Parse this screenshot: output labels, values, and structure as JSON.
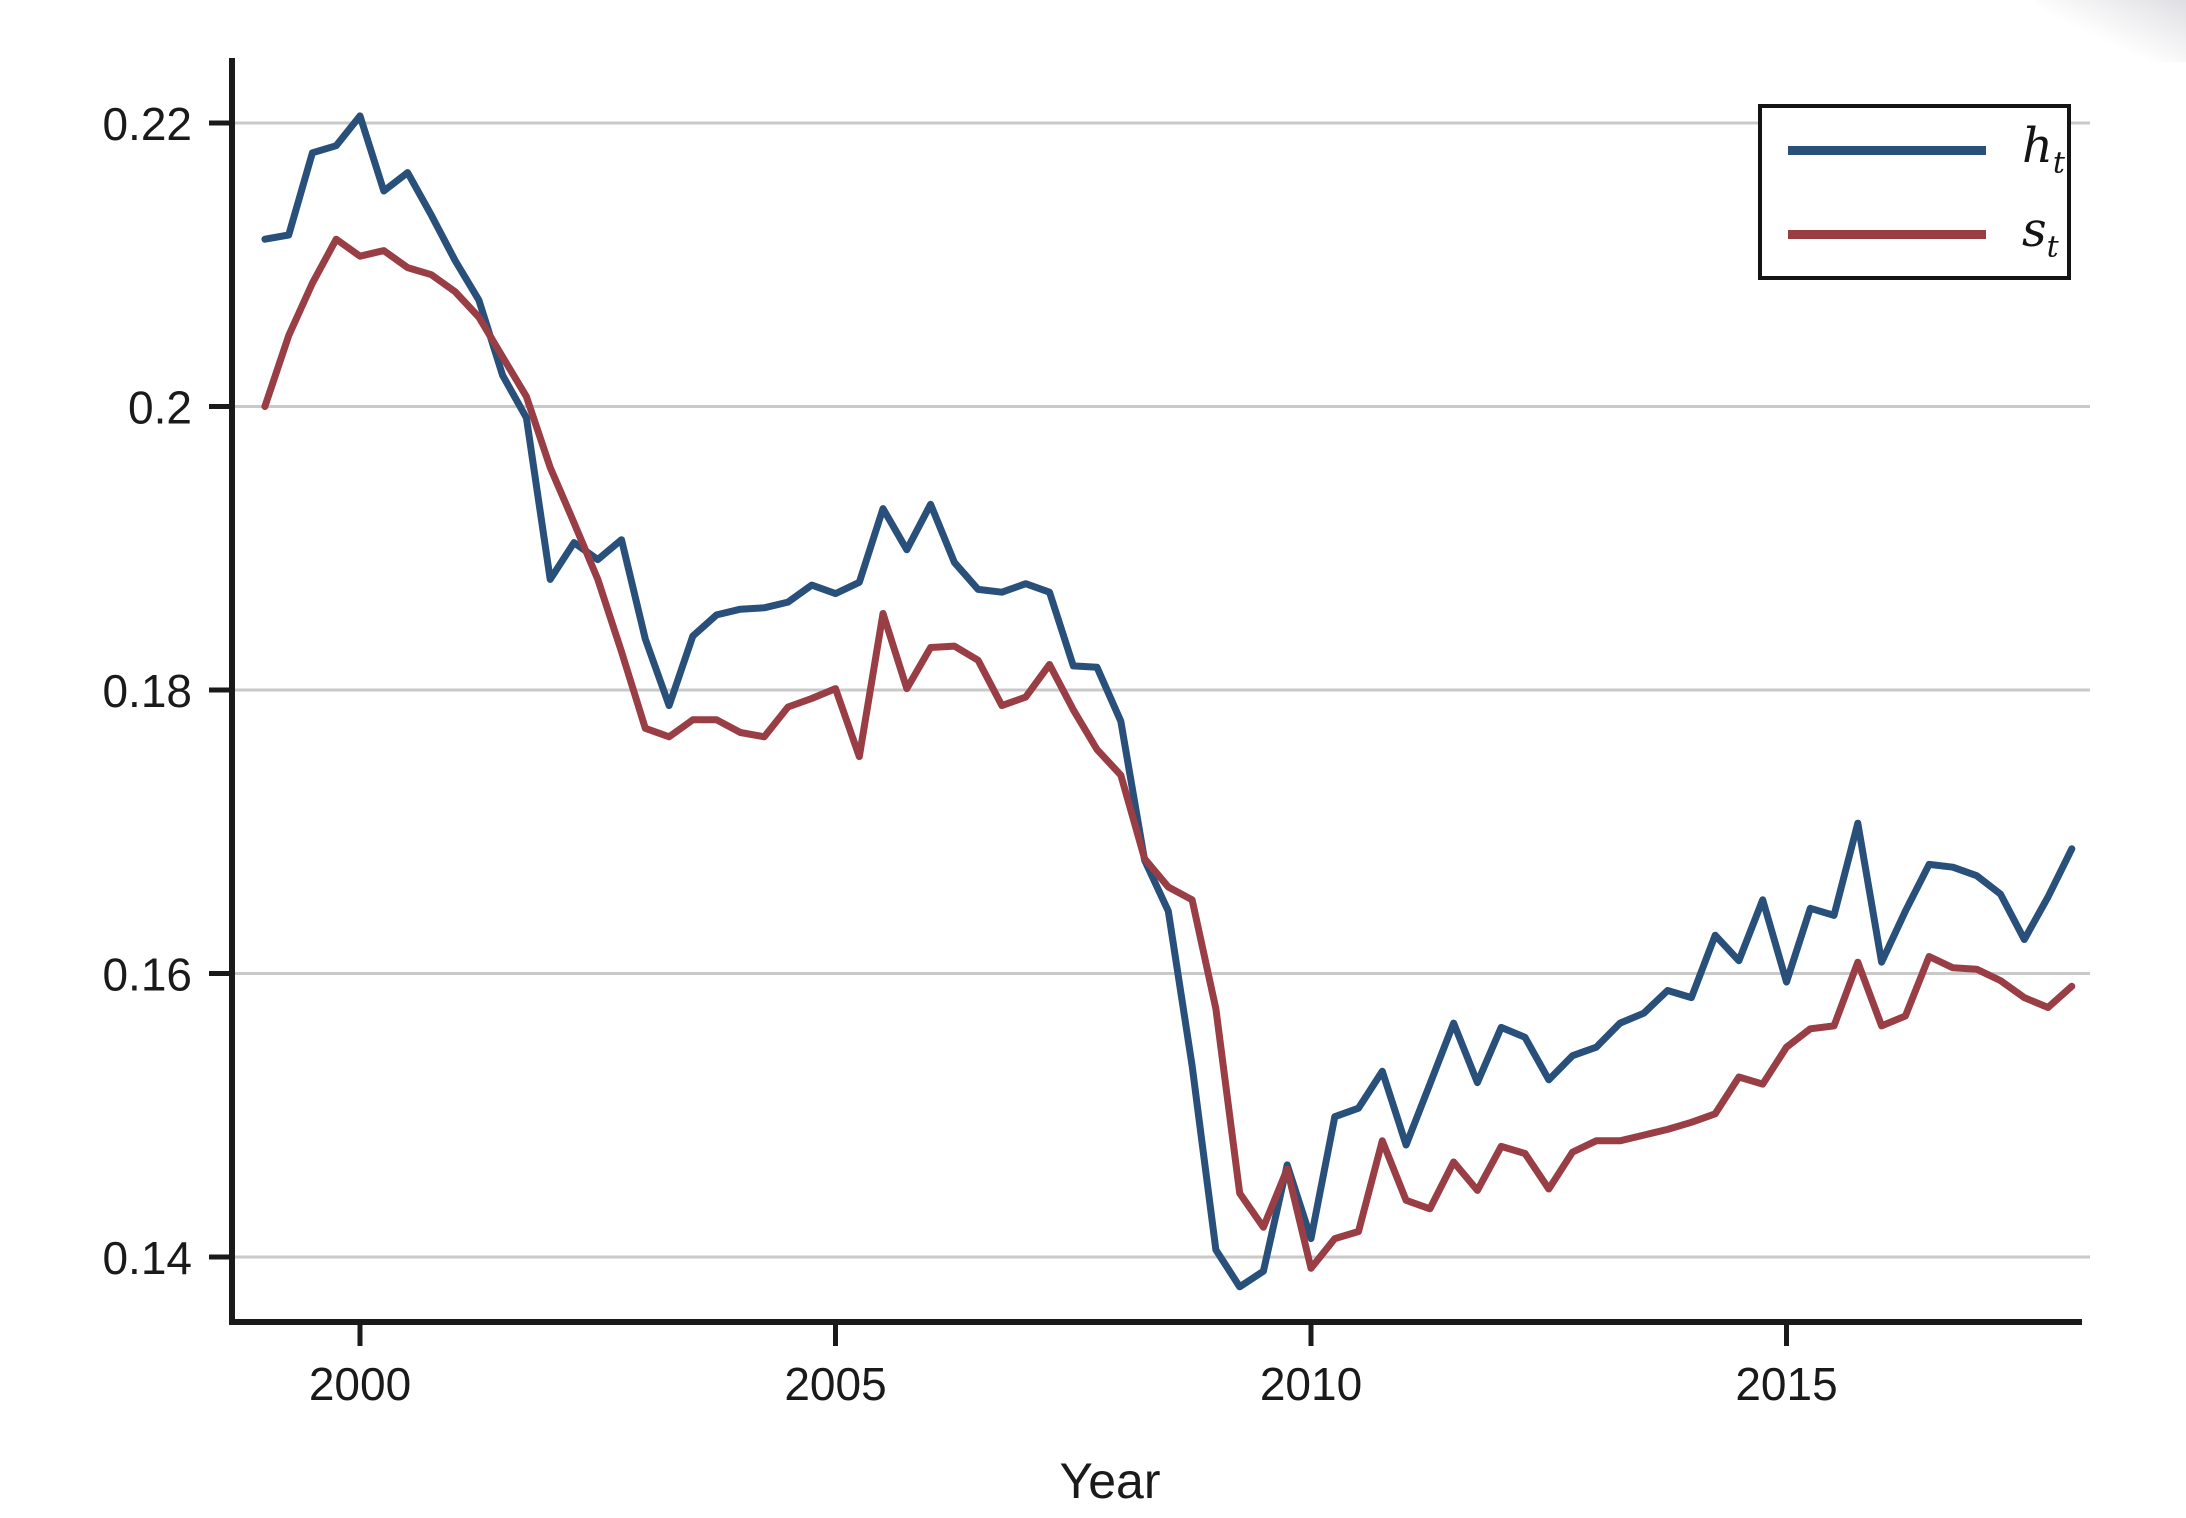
{
  "chart_data": {
    "type": "line",
    "title": "",
    "xlabel": "Year",
    "ylabel": "",
    "grid": "horizontal",
    "grid_color": "#c9c9c9",
    "axis_color": "#1a1a1a",
    "xlim": [
      1998.65,
      2018.75
    ],
    "ylim": [
      0.1355,
      0.2245
    ],
    "x_ticks": [
      {
        "value": 2000,
        "label": "2000"
      },
      {
        "value": 2005,
        "label": "2005"
      },
      {
        "value": 2010,
        "label": "2010"
      },
      {
        "value": 2015,
        "label": "2015"
      }
    ],
    "y_ticks": [
      {
        "value": 0.22,
        "label": "0.22"
      },
      {
        "value": 0.2,
        "label": "0.2"
      },
      {
        "value": 0.18,
        "label": "0.18"
      },
      {
        "value": 0.16,
        "label": "0.16"
      },
      {
        "value": 0.14,
        "label": "0.14"
      }
    ],
    "legend": {
      "position": "top-right",
      "items": [
        {
          "label": "h",
          "subscript": "t",
          "series": "h_t",
          "color": "#28507A"
        },
        {
          "label": "s",
          "subscript": "t",
          "series": "s_t",
          "color": "#9A3E46"
        }
      ]
    },
    "x": [
      1999,
      1999.25,
      1999.5,
      1999.75,
      2000,
      2000.25,
      2000.5,
      2000.75,
      2001,
      2001.25,
      2001.5,
      2001.75,
      2002,
      2002.25,
      2002.5,
      2002.75,
      2003,
      2003.25,
      2003.5,
      2003.75,
      2004,
      2004.25,
      2004.5,
      2004.75,
      2005,
      2005.25,
      2005.5,
      2005.75,
      2006,
      2006.25,
      2006.5,
      2006.75,
      2007,
      2007.25,
      2007.5,
      2007.75,
      2008,
      2008.25,
      2008.5,
      2008.75,
      2009,
      2009.25,
      2009.5,
      2009.75,
      2010,
      2010.25,
      2010.5,
      2010.75,
      2011,
      2011.25,
      2011.5,
      2011.75,
      2012,
      2012.25,
      2012.5,
      2012.75,
      2013,
      2013.25,
      2013.5,
      2013.75,
      2014,
      2014.25,
      2014.5,
      2014.75,
      2015,
      2015.25,
      2015.5,
      2015.75,
      2016,
      2016.25,
      2016.5,
      2016.75,
      2017,
      2017.25,
      2017.5,
      2017.75,
      2018
    ],
    "series": [
      {
        "name": "h_t",
        "color": "#28507A",
        "values": [
          0.2118,
          0.2121,
          0.2179,
          0.2184,
          0.2205,
          0.2152,
          0.2165,
          0.2135,
          0.2103,
          0.2075,
          0.2022,
          0.1992,
          0.1878,
          0.1904,
          0.1892,
          0.1906,
          0.1836,
          0.1789,
          0.1838,
          0.1853,
          0.1857,
          0.1858,
          0.1862,
          0.1874,
          0.1868,
          0.1876,
          0.1928,
          0.1899,
          0.1931,
          0.189,
          0.1871,
          0.1869,
          0.1875,
          0.1869,
          0.1817,
          0.1816,
          0.1778,
          0.168,
          0.1644,
          0.1535,
          0.1405,
          0.1379,
          0.139,
          0.1465,
          0.1413,
          0.1499,
          0.1505,
          0.1531,
          0.1479,
          0.1522,
          0.1565,
          0.1523,
          0.1562,
          0.1555,
          0.1525,
          0.1542,
          0.1548,
          0.1565,
          0.1572,
          0.1588,
          0.1583,
          0.1627,
          0.1609,
          0.1652,
          0.1594,
          0.1646,
          0.1641,
          0.1706,
          0.1608,
          0.1644,
          0.1677,
          0.1675,
          0.1669,
          0.1656,
          0.1624,
          0.1654,
          0.1688
        ]
      },
      {
        "name": "s_t",
        "color": "#9A3E46",
        "values": [
          0.2,
          0.205,
          0.2087,
          0.2118,
          0.2106,
          0.211,
          0.2098,
          0.2093,
          0.2081,
          0.2063,
          0.2035,
          0.2007,
          0.1957,
          0.1918,
          0.1878,
          0.1827,
          0.1773,
          0.1767,
          0.1779,
          0.1779,
          0.177,
          0.1767,
          0.1788,
          0.1794,
          0.1801,
          0.1753,
          0.1854,
          0.1801,
          0.183,
          0.1831,
          0.1821,
          0.1789,
          0.1795,
          0.1818,
          0.1786,
          0.1758,
          0.174,
          0.1681,
          0.1661,
          0.1652,
          0.1575,
          0.1445,
          0.1421,
          0.1462,
          0.1392,
          0.1413,
          0.1418,
          0.1482,
          0.144,
          0.1434,
          0.1467,
          0.1447,
          0.1478,
          0.1473,
          0.1448,
          0.1474,
          0.1482,
          0.1482,
          0.1486,
          0.149,
          0.1495,
          0.1501,
          0.1527,
          0.1522,
          0.1548,
          0.1561,
          0.1563,
          0.1608,
          0.1563,
          0.157,
          0.1612,
          0.1604,
          0.1603,
          0.1595,
          0.1583,
          0.1576,
          0.1591
        ]
      }
    ]
  }
}
